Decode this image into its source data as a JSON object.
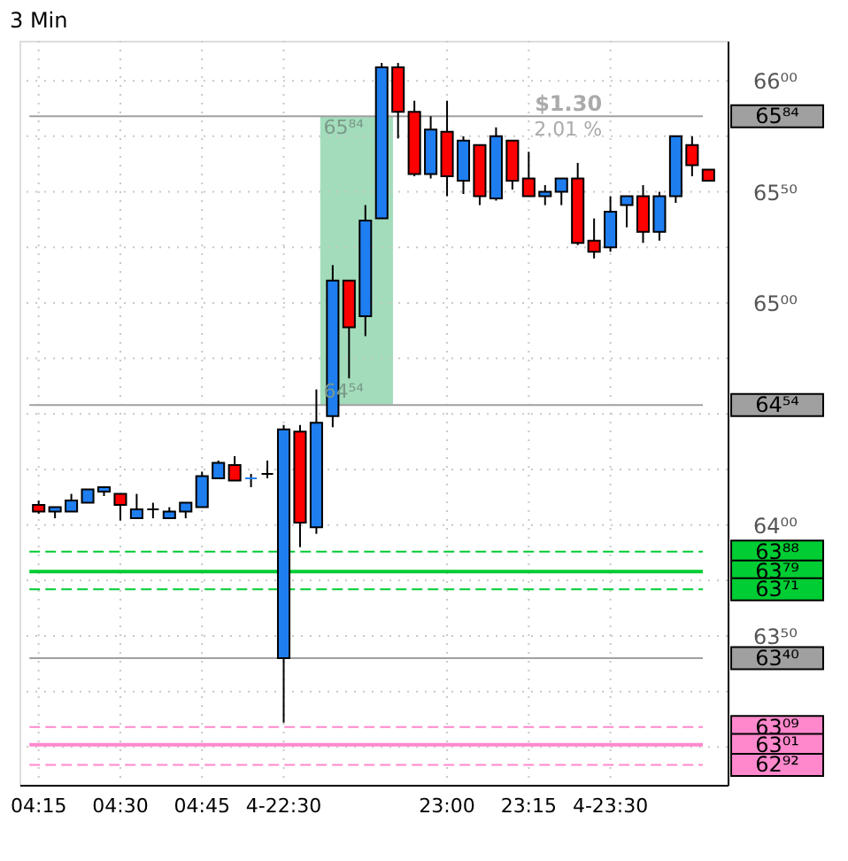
{
  "chart_data": {
    "type": "candlestick",
    "title": "3 Min",
    "categories": [
      "04:15",
      null,
      null,
      null,
      null,
      "04:30",
      null,
      null,
      null,
      null,
      "04:45",
      null,
      null,
      null,
      null,
      "4-22:30",
      null,
      null,
      null,
      null,
      null,
      null,
      null,
      null,
      null,
      "23:00",
      null,
      null,
      null,
      null,
      "23:15",
      null,
      null,
      null,
      null,
      "4-23:30",
      null,
      null,
      null,
      null,
      null,
      null
    ],
    "ohlc": [
      [
        64.09,
        64.11,
        64.05,
        64.06
      ],
      [
        64.06,
        64.08,
        64.03,
        64.08
      ],
      [
        64.06,
        64.14,
        64.06,
        64.11
      ],
      [
        64.1,
        64.16,
        64.1,
        64.16
      ],
      [
        64.15,
        64.17,
        64.13,
        64.17
      ],
      [
        64.14,
        64.14,
        64.02,
        64.09
      ],
      [
        64.03,
        64.14,
        64.03,
        64.07
      ],
      [
        64.07,
        64.1,
        64.03,
        64.07
      ],
      [
        64.03,
        64.08,
        64.03,
        64.06
      ],
      [
        64.06,
        64.1,
        64.03,
        64.1
      ],
      [
        64.08,
        64.24,
        64.08,
        64.22
      ],
      [
        64.21,
        64.29,
        64.21,
        64.28
      ],
      [
        64.27,
        64.31,
        64.2,
        64.2
      ],
      [
        64.21,
        64.23,
        64.17,
        64.21
      ],
      [
        64.23,
        64.29,
        64.21,
        64.23
      ],
      [
        63.4,
        64.45,
        63.11,
        64.43
      ],
      [
        64.42,
        64.45,
        63.9,
        64.01
      ],
      [
        63.99,
        64.61,
        63.96,
        64.46
      ],
      [
        64.49,
        65.17,
        64.44,
        65.1
      ],
      [
        65.1,
        65.1,
        64.66,
        64.89
      ],
      [
        64.94,
        65.44,
        64.85,
        65.37
      ],
      [
        65.38,
        66.08,
        65.38,
        66.06
      ],
      [
        66.06,
        66.08,
        65.74,
        65.86
      ],
      [
        65.86,
        65.91,
        65.57,
        65.58
      ],
      [
        65.58,
        65.84,
        65.56,
        65.78
      ],
      [
        65.77,
        65.91,
        65.48,
        65.57
      ],
      [
        65.55,
        65.75,
        65.49,
        65.73
      ],
      [
        65.71,
        65.71,
        65.44,
        65.48
      ],
      [
        65.47,
        65.79,
        65.46,
        65.75
      ],
      [
        65.73,
        65.73,
        65.51,
        65.55
      ],
      [
        65.56,
        65.68,
        65.48,
        65.48
      ],
      [
        65.48,
        65.53,
        65.44,
        65.5
      ],
      [
        65.5,
        65.56,
        65.44,
        65.56
      ],
      [
        65.56,
        65.63,
        65.26,
        65.27
      ],
      [
        65.28,
        65.38,
        65.2,
        65.23
      ],
      [
        65.25,
        65.48,
        65.23,
        65.41
      ],
      [
        65.44,
        65.48,
        65.34,
        65.48
      ],
      [
        65.48,
        65.53,
        65.27,
        65.32
      ],
      [
        65.32,
        65.5,
        65.28,
        65.48
      ],
      [
        65.48,
        65.75,
        65.45,
        65.75
      ],
      [
        65.71,
        65.75,
        65.57,
        65.62
      ],
      [
        65.6,
        65.6,
        65.55,
        65.55
      ]
    ],
    "colors": [
      "#ff0000",
      "#1e7ef0",
      "#1e7ef0",
      "#1e7ef0",
      "#1e7ef0",
      "#ff0000",
      "#1e7ef0",
      "#000000",
      "#1e7ef0",
      "#1e7ef0",
      "#1e7ef0",
      "#1e7ef0",
      "#ff0000",
      "#1e7ef0",
      "#000000",
      "#1e7ef0",
      "#ff0000",
      "#1e7ef0",
      "#1e7ef0",
      "#ff0000",
      "#1e7ef0",
      "#1e7ef0",
      "#ff0000",
      "#ff0000",
      "#1e7ef0",
      "#ff0000",
      "#1e7ef0",
      "#ff0000",
      "#1e7ef0",
      "#ff0000",
      "#ff0000",
      "#1e7ef0",
      "#1e7ef0",
      "#ff0000",
      "#ff0000",
      "#1e7ef0",
      "#1e7ef0",
      "#ff0000",
      "#1e7ef0",
      "#1e7ef0",
      "#ff0000",
      "#ff0000"
    ],
    "ylim": [
      62.83,
      66.18
    ],
    "yticks": [
      {
        "value": 63.0,
        "label": null
      },
      {
        "value": 63.25,
        "label": null
      },
      {
        "value": 63.5,
        "label": "63⁵⁰"
      },
      {
        "value": 63.75,
        "label": null
      },
      {
        "value": 64.0,
        "label": "64⁰⁰"
      },
      {
        "value": 64.25,
        "label": null
      },
      {
        "value": 64.5,
        "label": null
      },
      {
        "value": 64.75,
        "label": null
      },
      {
        "value": 65.0,
        "label": "65⁰⁰"
      },
      {
        "value": 65.25,
        "label": null
      },
      {
        "value": 65.5,
        "label": "65⁵⁰"
      },
      {
        "value": 65.75,
        "label": null
      },
      {
        "value": 66.0,
        "label": "66⁰⁰"
      }
    ],
    "grid": true,
    "ref_lines": [
      {
        "axis": "y",
        "value": 65.84,
        "label": "65⁸⁴",
        "color": "#a0a0a0",
        "line_style": "solid"
      },
      {
        "axis": "y",
        "value": 64.54,
        "label": "64⁵⁴",
        "color": "#a0a0a0",
        "line_style": "solid"
      },
      {
        "axis": "y",
        "value": 63.88,
        "label": "63⁸⁸",
        "color": "#00cc33",
        "line_style": "dashed"
      },
      {
        "axis": "y",
        "value": 63.79,
        "label": "63⁷⁹",
        "color": "#00cc33",
        "line_style": "solid"
      },
      {
        "axis": "y",
        "value": 63.71,
        "label": "63⁷¹",
        "color": "#00cc33",
        "line_style": "dashed"
      },
      {
        "axis": "y",
        "value": 63.4,
        "label": "63⁴⁰",
        "color": "#a0a0a0",
        "line_style": "solid"
      },
      {
        "axis": "y",
        "value": 63.09,
        "label": "63⁰⁹",
        "color": "#ff88cc",
        "line_style": "dashed"
      },
      {
        "axis": "y",
        "value": 63.01,
        "label": "63⁰¹",
        "color": "#ff88cc",
        "line_style": "solid"
      },
      {
        "axis": "y",
        "value": 62.92,
        "label": "62⁹²",
        "color": "#ff88cc",
        "line_style": "dashed"
      }
    ],
    "bands": [
      {
        "axis": "y",
        "from": 64.54,
        "to": 65.84,
        "color": "#99d8b4"
      }
    ],
    "annotations": [
      "$1.30",
      "2.01 %"
    ]
  }
}
